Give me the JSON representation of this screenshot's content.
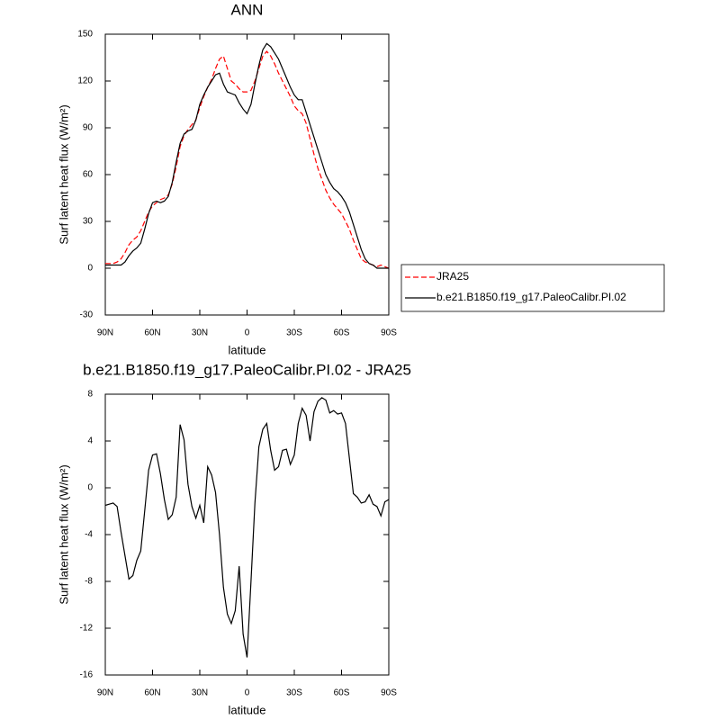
{
  "chart_data": [
    {
      "type": "line",
      "title": "ANN",
      "xlabel": "latitude",
      "ylabel": "Surf latent heat flux (W/m²)",
      "x": [
        90,
        87.5,
        85,
        82.5,
        80,
        77.5,
        75,
        72.5,
        70,
        67.5,
        65,
        62.5,
        60,
        57.5,
        55,
        52.5,
        50,
        47.5,
        45,
        42.5,
        40,
        37.5,
        35,
        32.5,
        30,
        27.5,
        25,
        22.5,
        20,
        17.5,
        15,
        12.5,
        10,
        7.5,
        5,
        2.5,
        0,
        -2.5,
        -5,
        -7.5,
        -10,
        -12.5,
        -15,
        -17.5,
        -20,
        -22.5,
        -25,
        -27.5,
        -30,
        -32.5,
        -35,
        -37.5,
        -40,
        -42.5,
        -45,
        -47.5,
        -50,
        -52.5,
        -55,
        -57.5,
        -60,
        -62.5,
        -65,
        -67.5,
        -70,
        -72.5,
        -75,
        -77.5,
        -80,
        -82.5,
        -85,
        -87.5,
        -90
      ],
      "xlim": [
        90,
        -90
      ],
      "xticks": [
        {
          "value": 90,
          "label": "90N"
        },
        {
          "value": 60,
          "label": "60N"
        },
        {
          "value": 30,
          "label": "30N"
        },
        0,
        {
          "value": -30,
          "label": "30S"
        },
        {
          "value": -60,
          "label": "60S"
        },
        {
          "value": -90,
          "label": "90S"
        }
      ],
      "ylim": [
        -30,
        150
      ],
      "yticks": [
        -30,
        0,
        30,
        60,
        90,
        120,
        150
      ],
      "legend": "right",
      "series": [
        {
          "name": "JRA25",
          "color": "#ff0000",
          "linestyle": "dashed",
          "values": [
            3,
            3,
            3,
            4,
            6,
            10,
            15,
            18,
            20,
            24,
            30,
            36,
            40,
            42,
            44,
            45,
            47,
            54,
            65,
            78,
            85,
            89,
            92,
            95,
            103,
            110,
            116,
            121,
            128,
            134,
            136,
            128,
            120,
            118,
            115,
            113,
            113,
            114,
            120,
            128,
            136,
            139,
            136,
            131,
            125,
            120,
            115,
            110,
            104,
            101,
            99,
            93,
            83,
            73,
            64,
            57,
            50,
            45,
            41,
            38,
            35,
            30,
            25,
            18,
            12,
            6,
            4,
            3,
            2,
            1,
            2,
            1,
            0
          ]
        },
        {
          "name": "b.e21.B1850.f19_g17.PaleoCalibr.PI.02",
          "color": "#000000",
          "linestyle": "solid",
          "values": [
            2,
            2,
            2,
            2,
            2,
            4,
            8,
            11,
            13,
            16,
            25,
            35,
            42,
            43,
            42,
            43,
            46,
            55,
            68,
            80,
            86,
            88,
            89,
            95,
            105,
            111,
            116,
            120,
            124,
            125,
            118,
            113,
            112,
            111,
            106,
            102,
            99,
            105,
            118,
            130,
            140,
            144,
            142,
            138,
            134,
            128,
            122,
            116,
            111,
            108,
            108,
            100,
            92,
            84,
            76,
            68,
            60,
            55,
            51,
            49,
            46,
            42,
            36,
            28,
            20,
            12,
            6,
            3,
            2,
            0,
            0,
            0,
            0
          ]
        }
      ]
    },
    {
      "type": "line",
      "title": "b.e21.B1850.f19_g17.PaleoCalibr.PI.02 - JRA25",
      "xlabel": "latitude",
      "ylabel": "Surf latent heat flux (W/m²)",
      "x": [
        90,
        87.5,
        85,
        82.5,
        80,
        77.5,
        75,
        72.5,
        70,
        67.5,
        65,
        62.5,
        60,
        57.5,
        55,
        52.5,
        50,
        47.5,
        45,
        42.5,
        40,
        37.5,
        35,
        32.5,
        30,
        27.5,
        25,
        22.5,
        20,
        17.5,
        15,
        12.5,
        10,
        7.5,
        5,
        2.5,
        0,
        -2.5,
        -5,
        -7.5,
        -10,
        -12.5,
        -15,
        -17.5,
        -20,
        -22.5,
        -25,
        -27.5,
        -30,
        -32.5,
        -35,
        -37.5,
        -40,
        -42.5,
        -45,
        -47.5,
        -50,
        -52.5,
        -55,
        -57.5,
        -60,
        -62.5,
        -65,
        -67.5,
        -70,
        -72.5,
        -75,
        -77.5,
        -80,
        -82.5,
        -85,
        -87.5,
        -90
      ],
      "xlim": [
        90,
        -90
      ],
      "xticks": [
        {
          "value": 90,
          "label": "90N"
        },
        {
          "value": 60,
          "label": "60N"
        },
        {
          "value": 30,
          "label": "30N"
        },
        0,
        {
          "value": -30,
          "label": "30S"
        },
        {
          "value": -60,
          "label": "60S"
        },
        {
          "value": -90,
          "label": "90S"
        }
      ],
      "ylim": [
        -16,
        8
      ],
      "yticks": [
        -16,
        -12,
        -8,
        -4,
        0,
        4,
        8
      ],
      "series": [
        {
          "color": "#000000",
          "linestyle": "solid",
          "values": [
            -1.5,
            -1.4,
            -1.3,
            -1.6,
            -3.8,
            -5.8,
            -7.8,
            -7.5,
            -6.2,
            -5.4,
            -2,
            1.5,
            2.8,
            2.9,
            1.2,
            -1,
            -2.7,
            -2.3,
            -0.8,
            5.4,
            4.1,
            0.3,
            -1.6,
            -2.6,
            -1.5,
            -3,
            1.8,
            1.1,
            -0.4,
            -4,
            -8.5,
            -10.8,
            -11.6,
            -10.5,
            -6.7,
            -12.5,
            -14.5,
            -8,
            -1.3,
            3.5,
            5,
            5.5,
            3.2,
            1.5,
            1.8,
            3.2,
            3.3,
            2,
            2.8,
            5.5,
            6.8,
            6.2,
            4,
            6.5,
            7.4,
            7.7,
            7.5,
            6.4,
            6.6,
            6.3,
            6.4,
            5.5,
            2.5,
            -0.5,
            -0.8,
            -1.3,
            -1.2,
            -0.6,
            -1.4,
            -1.6,
            -2.4,
            -1.2,
            -1
          ]
        }
      ]
    }
  ]
}
